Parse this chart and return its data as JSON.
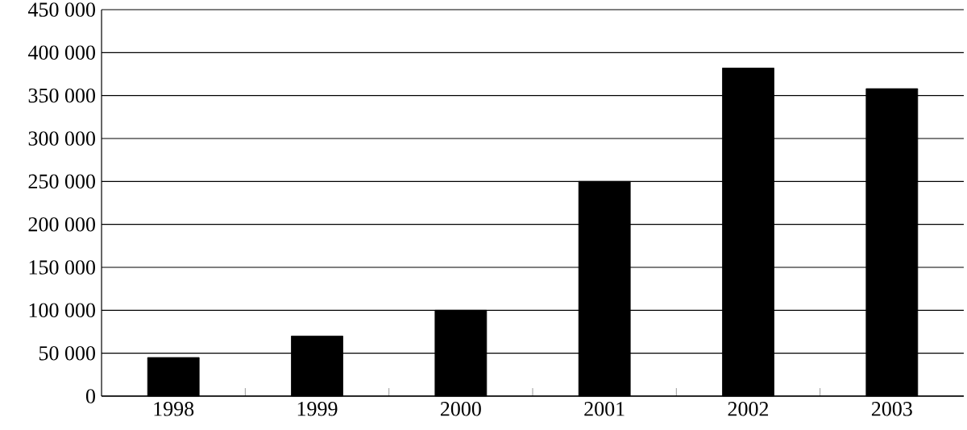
{
  "chart_data": {
    "type": "bar",
    "categories": [
      "1998",
      "1999",
      "2000",
      "2001",
      "2002",
      "2003"
    ],
    "values": [
      45000,
      70000,
      100000,
      250000,
      382000,
      358000
    ],
    "color": "#000000",
    "ylim": [
      0,
      450000
    ],
    "yticks": [
      {
        "value": 0,
        "label": "0"
      },
      {
        "value": 50000,
        "label": "50 000"
      },
      {
        "value": 100000,
        "label": "100 000"
      },
      {
        "value": 150000,
        "label": "150 000"
      },
      {
        "value": 200000,
        "label": "200 000"
      },
      {
        "value": 250000,
        "label": "250 000"
      },
      {
        "value": 300000,
        "label": "300 000"
      },
      {
        "value": 350000,
        "label": "350 000"
      },
      {
        "value": 400000,
        "label": "400 000"
      },
      {
        "value": 450000,
        "label": "450 000"
      }
    ],
    "grid": "y"
  }
}
